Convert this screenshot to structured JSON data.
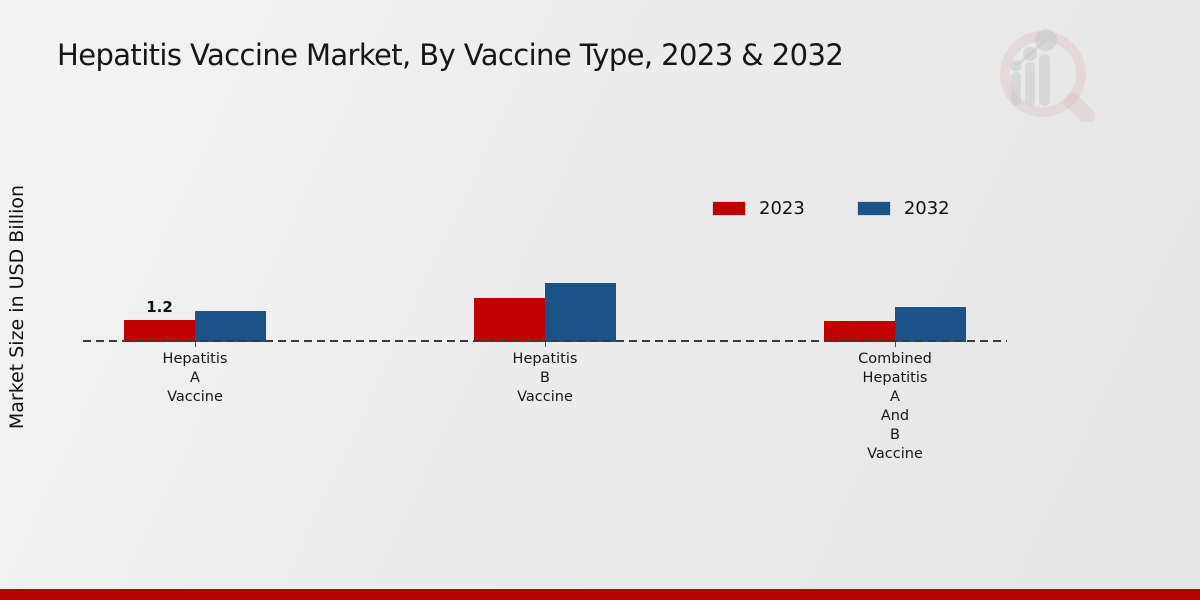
{
  "title": "Hepatitis Vaccine Market, By Vaccine Type, 2023 & 2032",
  "y_axis_label": "Market Size in USD Billion",
  "icons": {
    "logo": "magnifying-glass-bar-chart"
  },
  "colors": {
    "series_2023": "#c00000",
    "series_2032": "#1b5288",
    "footer_bar": "#b80000",
    "background": "#ececec",
    "baseline_dash": "#3a3a3a"
  },
  "chart_data": {
    "type": "bar",
    "title": "Hepatitis Vaccine Market, By Vaccine Type, 2023 & 2032",
    "xlabel": "",
    "ylabel": "Market Size in USD Billion",
    "categories": [
      "Hepatitis A Vaccine",
      "Hepatitis B Vaccine",
      "Combined Hepatitis A And B Vaccine"
    ],
    "series": [
      {
        "name": "2023",
        "color": "#c00000",
        "values": [
          1.2,
          2.4,
          1.15
        ],
        "value_labels": [
          "1.2",
          "",
          ""
        ]
      },
      {
        "name": "2032",
        "color": "#1b5288",
        "values": [
          1.7,
          3.2,
          1.9
        ],
        "value_labels": [
          "",
          "",
          ""
        ]
      }
    ],
    "ylim": [
      0,
      3.5
    ],
    "grid": "off",
    "axis_style": "dashed-baseline-only",
    "legend_position": "upper-right"
  }
}
